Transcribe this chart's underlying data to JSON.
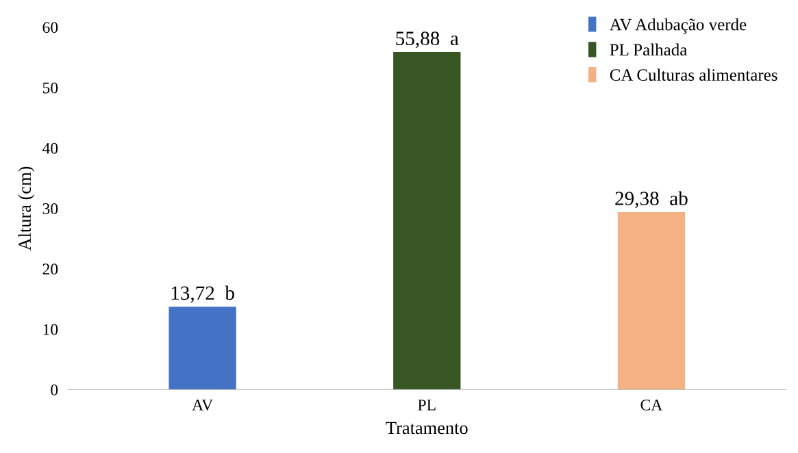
{
  "chart_data": {
    "type": "bar",
    "xlabel": "Tratamento",
    "ylabel": "Altura (cm)",
    "categories": [
      "AV",
      "PL",
      "CA"
    ],
    "series": [
      {
        "name": "AV Adubação verde",
        "color": "#4472c4",
        "values": [
          13.72,
          null,
          null
        ],
        "value_labels": [
          "13,72  b",
          null,
          null
        ]
      },
      {
        "name": "PL Palhada",
        "color": "#375623",
        "values": [
          null,
          55.88,
          null
        ],
        "value_labels": [
          null,
          "55,88  a",
          null
        ]
      },
      {
        "name": "CA Culturas alimentares",
        "color": "#f4b183",
        "values": [
          null,
          null,
          29.38
        ],
        "value_labels": [
          null,
          null,
          "29,38  ab"
        ]
      }
    ],
    "ylim": [
      0,
      60
    ],
    "yticks": [
      0,
      10,
      20,
      30,
      40,
      50,
      60
    ],
    "grid": false,
    "legend": "top right"
  }
}
